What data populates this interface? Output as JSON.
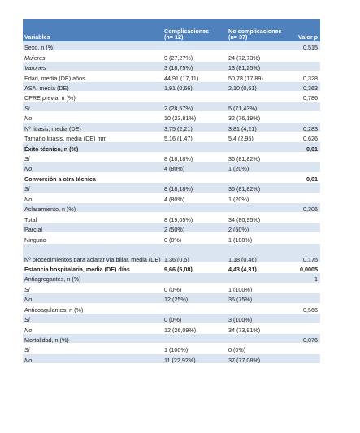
{
  "header": {
    "variables": "Variables",
    "comp_line1": "Complicaciones",
    "comp_line2": "(n= 12)",
    "nocomp_line1": "No complicaciones",
    "nocomp_line2": "(n= 37)",
    "pvalue": "Valor p"
  },
  "rows": [
    {
      "var": "Sexo, n (%)",
      "comp": "",
      "nocomp": "",
      "p": "0,515",
      "style": ""
    },
    {
      "var": "Mujeres",
      "comp": "9 (27,27%)",
      "nocomp": "24 (72,73%)",
      "p": "",
      "style": "ital"
    },
    {
      "var": "Varones",
      "comp": "3 (18,75%)",
      "nocomp": "13 (81,25%)",
      "p": "",
      "style": "ital"
    },
    {
      "var": "Edad, media (DE) años",
      "comp": "44,91 (17,11)",
      "nocomp": "50,78 (17,89)",
      "p": "0,328",
      "style": ""
    },
    {
      "var": "ASA, media (DE)",
      "comp": "1,91 (0,66)",
      "nocomp": "2,10 (0,61)",
      "p": "0,363",
      "style": ""
    },
    {
      "var": "CPRE previa, n (%)",
      "comp": "",
      "nocomp": "",
      "p": "0,786",
      "style": ""
    },
    {
      "var": "Sí",
      "comp": "2 (28,57%)",
      "nocomp": "5 (71,43%)",
      "p": "",
      "style": "ital"
    },
    {
      "var": "No",
      "comp": "10 (23,81%)",
      "nocomp": "32 (76,19%)",
      "p": "",
      "style": "ital"
    },
    {
      "var": "Nº litiasis, media (DE)",
      "comp": "3,75 (2,21)",
      "nocomp": "3,81 (4,21)",
      "p": "0,283",
      "style": ""
    },
    {
      "var": "Tamaño litiasis, media (DE) mm",
      "comp": "5,16 (1,47)",
      "nocomp": "5,4 (2,95)",
      "p": "0,626",
      "style": ""
    },
    {
      "var": "Éxito técnico, n (%)",
      "comp": "",
      "nocomp": "",
      "p": "0,01",
      "style": "bold"
    },
    {
      "var": "Sí",
      "comp": "8 (18,18%)",
      "nocomp": "36 (81,82%)",
      "p": "",
      "style": "ital"
    },
    {
      "var": "No",
      "comp": "4 (80%)",
      "nocomp": "1 (20%)",
      "p": "",
      "style": "ital"
    },
    {
      "var": "Conversión a otra técnica",
      "comp": "",
      "nocomp": "",
      "p": "0,01",
      "style": "bold"
    },
    {
      "var": "Sí",
      "comp": "8 (18,18%)",
      "nocomp": "36 (81,82%)",
      "p": "",
      "style": "ital"
    },
    {
      "var": "No",
      "comp": "4 (80%)",
      "nocomp": "1 (20%)",
      "p": "",
      "style": "ital"
    },
    {
      "var": "Aclaramiento, n (%)",
      "comp": "",
      "nocomp": "",
      "p": "0,306",
      "style": ""
    },
    {
      "var": "Total",
      "comp": "8 (19,05%)",
      "nocomp": "34 (80,95%)",
      "p": "",
      "style": ""
    },
    {
      "var": "Parcial",
      "comp": "2 (50%)",
      "nocomp": "2 (50%)",
      "p": "",
      "style": ""
    },
    {
      "var": "Ninguno",
      "comp": "0 (0%)",
      "nocomp": "1 (100%)",
      "p": "",
      "style": ""
    },
    {
      "var": "Nº procedimientos para aclarar vía biliar, media (DE)",
      "comp": "1,36 (0,5)",
      "nocomp": "1,18 (0,46)",
      "p": "0,175",
      "style": "tall"
    },
    {
      "var": "Estancia hospitalaria, media (DE) días",
      "comp": "9,66 (5,08)",
      "nocomp": "4,43 (4,31)",
      "p": "0,0005",
      "style": "bold"
    },
    {
      "var": "Antiagregantes, n (%)",
      "comp": "",
      "nocomp": "",
      "p": "1",
      "style": ""
    },
    {
      "var": "Sí",
      "comp": "0 (0%)",
      "nocomp": "1 (100%)",
      "p": "",
      "style": "ital"
    },
    {
      "var": "No",
      "comp": "12 (25%)",
      "nocomp": "36 (75%)",
      "p": "",
      "style": "ital"
    },
    {
      "var": "Anticoagulantes, n (%)",
      "comp": "",
      "nocomp": "",
      "p": "0,566",
      "style": ""
    },
    {
      "var": "Sí",
      "comp": "0 (0%)",
      "nocomp": "3 (100%)",
      "p": "",
      "style": "ital"
    },
    {
      "var": "No",
      "comp": "12 (26,09%)",
      "nocomp": "34 (73,91%)",
      "p": "",
      "style": "ital"
    },
    {
      "var": "Mortalidad, n (%)",
      "comp": "",
      "nocomp": "",
      "p": "0,076",
      "style": ""
    },
    {
      "var": "Sí",
      "comp": "1 (100%)",
      "nocomp": "0 (0%)",
      "p": "",
      "style": "ital"
    },
    {
      "var": "No",
      "comp": "11 (22,92%)",
      "nocomp": "37 (77,08%)",
      "p": "",
      "style": "ital"
    }
  ]
}
